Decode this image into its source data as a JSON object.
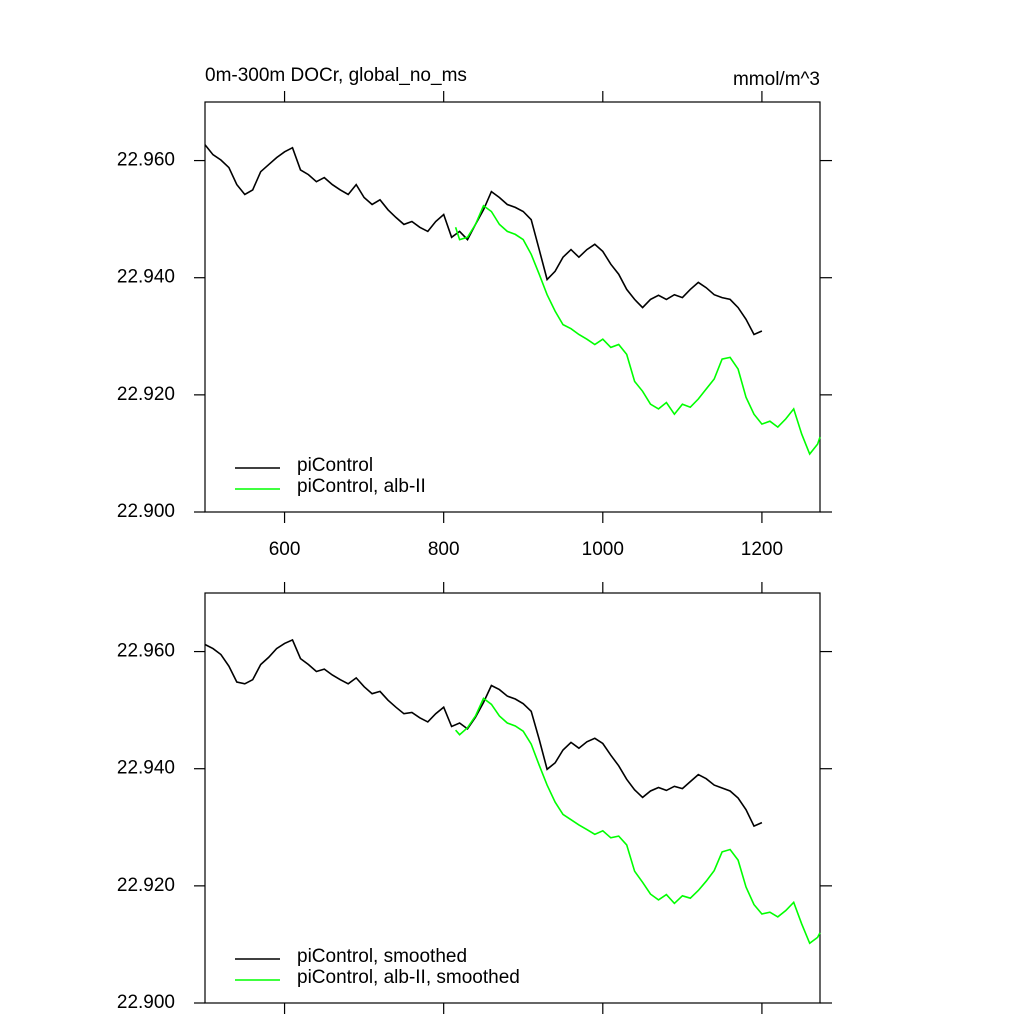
{
  "chart_data": [
    {
      "type": "line",
      "title": "0m-300m DOCr, global_no_ms",
      "units_label": "mmol/m^3",
      "xlim": [
        500,
        1273
      ],
      "xticks": [
        600,
        800,
        1000,
        1200
      ],
      "ylim": [
        22.9,
        22.97
      ],
      "yticks": [
        {
          "value": 22.9,
          "label": "22.900"
        },
        {
          "value": 22.92,
          "label": "22.920"
        },
        {
          "value": 22.94,
          "label": "22.940"
        },
        {
          "value": 22.96,
          "label": "22.960"
        }
      ],
      "legend": "lower left",
      "series": [
        {
          "name": "piControl",
          "color": "#000000",
          "x": [
            500,
            510,
            520,
            530,
            540,
            550,
            560,
            570,
            580,
            590,
            600,
            610,
            620,
            630,
            640,
            650,
            660,
            670,
            680,
            690,
            700,
            710,
            720,
            730,
            740,
            750,
            760,
            770,
            780,
            790,
            800,
            810,
            820,
            830,
            840,
            850,
            860,
            870,
            880,
            890,
            900,
            910,
            920,
            930,
            940,
            950,
            960,
            970,
            980,
            990,
            1000,
            1010,
            1020,
            1030,
            1040,
            1050,
            1060,
            1070,
            1080,
            1090,
            1100,
            1110,
            1120,
            1130,
            1140,
            1150,
            1160,
            1170,
            1180,
            1190,
            1200
          ],
          "values": [
            22.9627,
            22.961,
            22.9601,
            22.9588,
            22.9559,
            22.9542,
            22.955,
            22.9581,
            22.9593,
            22.9605,
            22.9615,
            22.9622,
            22.9584,
            22.9576,
            22.9564,
            22.9571,
            22.9559,
            22.955,
            22.9542,
            22.9559,
            22.9537,
            22.9525,
            22.9533,
            22.9516,
            22.9503,
            22.9491,
            22.9496,
            22.9486,
            22.9479,
            22.9496,
            22.9508,
            22.9469,
            22.9479,
            22.9465,
            22.9491,
            22.9516,
            22.9547,
            22.9537,
            22.9525,
            22.952,
            22.9513,
            22.9499,
            22.9448,
            22.9397,
            22.9411,
            22.9435,
            22.9448,
            22.9435,
            22.9448,
            22.9457,
            22.9445,
            22.9423,
            22.9406,
            22.938,
            22.9363,
            22.9349,
            22.9363,
            22.937,
            22.9363,
            22.9371,
            22.9366,
            22.938,
            22.9392,
            22.9383,
            22.9371,
            22.9366,
            22.9363,
            22.9349,
            22.9329,
            22.9303,
            22.9309
          ]
        },
        {
          "name": "piControl, alb-II",
          "color": "#00ff00",
          "x": [
            815,
            820,
            830,
            840,
            850,
            860,
            870,
            880,
            890,
            900,
            910,
            920,
            930,
            940,
            950,
            960,
            970,
            980,
            990,
            1000,
            1010,
            1020,
            1030,
            1040,
            1050,
            1060,
            1070,
            1080,
            1090,
            1100,
            1110,
            1120,
            1130,
            1140,
            1150,
            1160,
            1170,
            1180,
            1190,
            1200,
            1210,
            1220,
            1230,
            1240,
            1250,
            1260,
            1270,
            1273
          ],
          "values": [
            22.9486,
            22.9465,
            22.9469,
            22.9491,
            22.9523,
            22.9513,
            22.9491,
            22.9479,
            22.9474,
            22.9465,
            22.944,
            22.9406,
            22.9371,
            22.9343,
            22.932,
            22.9313,
            22.9303,
            22.9295,
            22.9286,
            22.9295,
            22.9281,
            22.9286,
            22.9269,
            22.9223,
            22.9206,
            22.9184,
            22.9176,
            22.9187,
            22.9167,
            22.9184,
            22.9179,
            22.9193,
            22.921,
            22.9227,
            22.9261,
            22.9264,
            22.9244,
            22.9196,
            22.9167,
            22.915,
            22.9155,
            22.9145,
            22.9159,
            22.9176,
            22.9133,
            22.9099,
            22.9116,
            22.9128
          ]
        }
      ]
    },
    {
      "type": "line",
      "xlim": [
        500,
        1273
      ],
      "xticks": [
        600,
        800,
        1000,
        1200
      ],
      "ylim": [
        22.9,
        22.97
      ],
      "yticks": [
        {
          "value": 22.9,
          "label": "22.900"
        },
        {
          "value": 22.92,
          "label": "22.920"
        },
        {
          "value": 22.94,
          "label": "22.940"
        },
        {
          "value": 22.96,
          "label": "22.960"
        }
      ],
      "legend": "lower left",
      "series": [
        {
          "name": "piControl, smoothed",
          "color": "#000000",
          "x": [
            500,
            510,
            520,
            530,
            540,
            550,
            560,
            570,
            580,
            590,
            600,
            610,
            620,
            630,
            640,
            650,
            660,
            670,
            680,
            690,
            700,
            710,
            720,
            730,
            740,
            750,
            760,
            770,
            780,
            790,
            800,
            810,
            820,
            830,
            840,
            850,
            860,
            870,
            880,
            890,
            900,
            910,
            920,
            930,
            940,
            950,
            960,
            970,
            980,
            990,
            1000,
            1010,
            1020,
            1030,
            1040,
            1050,
            1060,
            1070,
            1080,
            1090,
            1100,
            1110,
            1120,
            1130,
            1140,
            1150,
            1160,
            1170,
            1180,
            1190,
            1200
          ],
          "values": [
            22.9612,
            22.9605,
            22.9595,
            22.9575,
            22.9548,
            22.9545,
            22.9552,
            22.9578,
            22.959,
            22.9605,
            22.9614,
            22.962,
            22.9588,
            22.9578,
            22.9566,
            22.957,
            22.956,
            22.9552,
            22.9545,
            22.9555,
            22.954,
            22.9528,
            22.9532,
            22.9517,
            22.9505,
            22.9494,
            22.9496,
            22.9487,
            22.948,
            22.9494,
            22.9505,
            22.9472,
            22.9478,
            22.9468,
            22.9488,
            22.9513,
            22.9542,
            22.9535,
            22.9524,
            22.9519,
            22.9511,
            22.9498,
            22.945,
            22.9399,
            22.941,
            22.9432,
            22.9445,
            22.9435,
            22.9446,
            22.9452,
            22.9443,
            22.9423,
            22.9405,
            22.9382,
            22.9364,
            22.9351,
            22.9362,
            22.9368,
            22.9363,
            22.937,
            22.9366,
            22.9378,
            22.939,
            22.9383,
            22.9372,
            22.9367,
            22.9362,
            22.935,
            22.933,
            22.9302,
            22.9308
          ]
        },
        {
          "name": "piControl, alb-II, smoothed",
          "color": "#00ff00",
          "x": [
            815,
            820,
            830,
            840,
            850,
            860,
            870,
            880,
            890,
            900,
            910,
            920,
            930,
            940,
            950,
            960,
            970,
            980,
            990,
            1000,
            1010,
            1020,
            1030,
            1040,
            1050,
            1060,
            1070,
            1080,
            1090,
            1100,
            1110,
            1120,
            1130,
            1140,
            1150,
            1160,
            1170,
            1180,
            1190,
            1200,
            1210,
            1220,
            1230,
            1240,
            1250,
            1260,
            1270,
            1273
          ],
          "values": [
            22.9466,
            22.9458,
            22.947,
            22.949,
            22.952,
            22.951,
            22.949,
            22.9478,
            22.9473,
            22.9464,
            22.9442,
            22.9406,
            22.9372,
            22.9343,
            22.9322,
            22.9313,
            22.9304,
            22.9296,
            22.9288,
            22.9294,
            22.9282,
            22.9285,
            22.927,
            22.9225,
            22.9206,
            22.9186,
            22.9176,
            22.9185,
            22.917,
            22.9183,
            22.9179,
            22.9192,
            22.9208,
            22.9226,
            22.9258,
            22.9262,
            22.9244,
            22.9198,
            22.9168,
            22.9152,
            22.9155,
            22.9147,
            22.9158,
            22.9172,
            22.9135,
            22.9102,
            22.9112,
            22.912
          ]
        }
      ]
    }
  ]
}
